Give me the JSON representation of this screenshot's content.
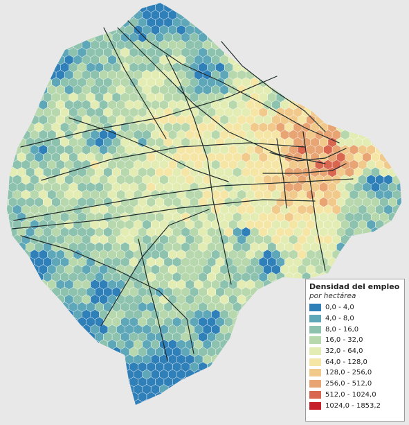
{
  "map": {
    "colors": {
      "background": "#e8e8e8",
      "roads": "#1f2a2a",
      "border": "#2f7fb8"
    }
  },
  "legend": {
    "title": "Densidad del empleo",
    "subtitle": "por hectárea",
    "items": [
      {
        "label": "0,0 - 4,0",
        "color": "#2f7fb8"
      },
      {
        "label": "4,0 - 8,0",
        "color": "#5da7b8"
      },
      {
        "label": "8,0 - 16,0",
        "color": "#8cc2ae"
      },
      {
        "label": "16,0 - 32,0",
        "color": "#b7d8ad"
      },
      {
        "label": "32,0 - 64,0",
        "color": "#e3ecb3"
      },
      {
        "label": "64,0 - 128,0",
        "color": "#f5e6a6"
      },
      {
        "label": "128,0 - 256,0",
        "color": "#f0c98b"
      },
      {
        "label": "256,0 - 512,0",
        "color": "#e8a472"
      },
      {
        "label": "512,0 - 1024,0",
        "color": "#d9674f"
      },
      {
        "label": "1024,0 - 1853,2",
        "color": "#c8202b"
      }
    ]
  }
}
